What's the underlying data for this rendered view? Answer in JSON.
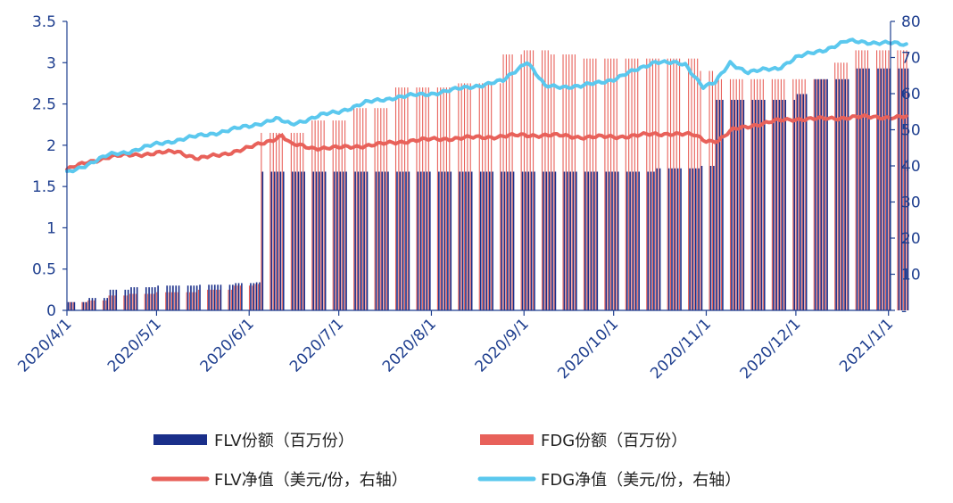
{
  "chart_data": {
    "type": "bar+line",
    "x_start": "2020-04-01",
    "x_end": "2021-01-07",
    "xticks": [
      "2020/4/1",
      "2020/5/1",
      "2020/6/1",
      "2020/7/1",
      "2020/8/1",
      "2020/9/1",
      "2020/10/1",
      "2020/11/1",
      "2020/12/1",
      "2021/1/1"
    ],
    "y_left": {
      "min": 0,
      "max": 3.5,
      "ticks": [
        "0",
        "0.5",
        "1",
        "1.5",
        "2",
        "2.5",
        "3",
        "3.5"
      ]
    },
    "y_right": {
      "min": 0,
      "max": 80,
      "ticks": [
        "-",
        "10",
        "20",
        "30",
        "40",
        "50",
        "60",
        "70",
        "80"
      ]
    },
    "series": [
      {
        "name": "FLV份额（百万份）",
        "type": "bar",
        "axis": "left",
        "color": "#1a2f8a",
        "steps": [
          [
            "2020-04-01",
            0.1
          ],
          [
            "2020-04-08",
            0.15
          ],
          [
            "2020-04-15",
            0.25
          ],
          [
            "2020-04-22",
            0.28
          ],
          [
            "2020-05-01",
            0.3
          ],
          [
            "2020-05-15",
            0.31
          ],
          [
            "2020-05-27",
            0.33
          ],
          [
            "2020-06-03",
            0.34
          ],
          [
            "2020-06-05",
            1.68
          ],
          [
            "2020-10-15",
            1.72
          ],
          [
            "2020-10-30",
            1.75
          ],
          [
            "2020-11-04",
            2.55
          ],
          [
            "2020-12-01",
            2.62
          ],
          [
            "2020-12-07",
            2.8
          ],
          [
            "2020-12-21",
            2.93
          ],
          [
            "2021-01-07",
            2.93
          ]
        ]
      },
      {
        "name": "FDG份额（百万份）",
        "type": "bar",
        "axis": "left",
        "color": "#e8615a",
        "steps": [
          [
            "2020-04-01",
            0.1
          ],
          [
            "2020-04-08",
            0.12
          ],
          [
            "2020-04-15",
            0.18
          ],
          [
            "2020-04-22",
            0.2
          ],
          [
            "2020-05-01",
            0.22
          ],
          [
            "2020-05-15",
            0.25
          ],
          [
            "2020-05-27",
            0.3
          ],
          [
            "2020-06-03",
            0.32
          ],
          [
            "2020-06-05",
            2.15
          ],
          [
            "2020-06-20",
            2.3
          ],
          [
            "2020-07-05",
            2.45
          ],
          [
            "2020-07-20",
            2.7
          ],
          [
            "2020-08-10",
            2.75
          ],
          [
            "2020-08-25",
            3.1
          ],
          [
            "2020-09-01",
            3.15
          ],
          [
            "2020-09-10",
            3.1
          ],
          [
            "2020-09-20",
            3.05
          ],
          [
            "2020-10-30",
            2.9
          ],
          [
            "2020-11-04",
            2.8
          ],
          [
            "2020-12-07",
            2.8
          ],
          [
            "2020-12-14",
            3.0
          ],
          [
            "2020-12-21",
            3.15
          ],
          [
            "2021-01-07",
            3.15
          ]
        ]
      },
      {
        "name": "FLV净值（美元/份，右轴）",
        "type": "line",
        "axis": "right",
        "color": "#e8615a",
        "points": [
          [
            "2020-04-01",
            39
          ],
          [
            "2020-04-08",
            41
          ],
          [
            "2020-04-15",
            42.5
          ],
          [
            "2020-04-22",
            43
          ],
          [
            "2020-05-01",
            43.5
          ],
          [
            "2020-05-08",
            44
          ],
          [
            "2020-05-15",
            42
          ],
          [
            "2020-05-22",
            43
          ],
          [
            "2020-06-01",
            45
          ],
          [
            "2020-06-08",
            47
          ],
          [
            "2020-06-12",
            48.5
          ],
          [
            "2020-06-15",
            46
          ],
          [
            "2020-06-22",
            45
          ],
          [
            "2020-07-01",
            45
          ],
          [
            "2020-07-15",
            46
          ],
          [
            "2020-07-25",
            47
          ],
          [
            "2020-08-05",
            47.5
          ],
          [
            "2020-08-20",
            48
          ],
          [
            "2020-09-01",
            48.5
          ],
          [
            "2020-09-10",
            48.5
          ],
          [
            "2020-09-20",
            48
          ],
          [
            "2020-10-01",
            48
          ],
          [
            "2020-10-10",
            48.5
          ],
          [
            "2020-10-20",
            49
          ],
          [
            "2020-10-28",
            48.5
          ],
          [
            "2020-11-01",
            47
          ],
          [
            "2020-11-05",
            47
          ],
          [
            "2020-11-10",
            50
          ],
          [
            "2020-11-15",
            51
          ],
          [
            "2020-11-25",
            52.5
          ],
          [
            "2020-12-01",
            53
          ],
          [
            "2020-12-10",
            53
          ],
          [
            "2020-12-20",
            53.5
          ],
          [
            "2021-01-01",
            53.5
          ],
          [
            "2021-01-07",
            53.5
          ]
        ]
      },
      {
        "name": "FDG净值（美元/份，右轴）",
        "type": "line",
        "axis": "right",
        "color": "#5bc8ee",
        "points": [
          [
            "2020-04-01",
            38
          ],
          [
            "2020-04-08",
            40.5
          ],
          [
            "2020-04-15",
            43
          ],
          [
            "2020-04-22",
            44
          ],
          [
            "2020-05-01",
            46
          ],
          [
            "2020-05-10",
            47.5
          ],
          [
            "2020-05-20",
            49
          ],
          [
            "2020-06-01",
            51
          ],
          [
            "2020-06-10",
            53
          ],
          [
            "2020-06-15",
            51.5
          ],
          [
            "2020-06-25",
            54
          ],
          [
            "2020-07-01",
            55
          ],
          [
            "2020-07-10",
            57.5
          ],
          [
            "2020-07-20",
            59
          ],
          [
            "2020-08-01",
            60
          ],
          [
            "2020-08-15",
            62
          ],
          [
            "2020-08-25",
            63.5
          ],
          [
            "2020-09-02",
            69
          ],
          [
            "2020-09-08",
            62
          ],
          [
            "2020-09-20",
            62
          ],
          [
            "2020-10-01",
            64
          ],
          [
            "2020-10-10",
            67
          ],
          [
            "2020-10-15",
            69
          ],
          [
            "2020-10-25",
            68
          ],
          [
            "2020-10-31",
            62
          ],
          [
            "2020-11-04",
            63
          ],
          [
            "2020-11-09",
            68.5
          ],
          [
            "2020-11-15",
            66
          ],
          [
            "2020-11-25",
            67
          ],
          [
            "2020-12-01",
            70
          ],
          [
            "2020-12-10",
            72
          ],
          [
            "2020-12-18",
            74.5
          ],
          [
            "2021-01-01",
            74
          ],
          [
            "2021-01-07",
            73.5
          ]
        ]
      }
    ],
    "legend_position": "bottom",
    "grid": false,
    "legend": [
      {
        "label": "FLV份额（百万份）",
        "kind": "bar",
        "color": "#1a2f8a"
      },
      {
        "label": "FDG份额（百万份）",
        "kind": "bar",
        "color": "#e8615a"
      },
      {
        "label": "FLV净值（美元/份，右轴）",
        "kind": "line",
        "color": "#e8615a"
      },
      {
        "label": "FDG净值（美元/份，右轴）",
        "kind": "line",
        "color": "#5bc8ee"
      }
    ],
    "axis_color": "#1f3f8f"
  }
}
